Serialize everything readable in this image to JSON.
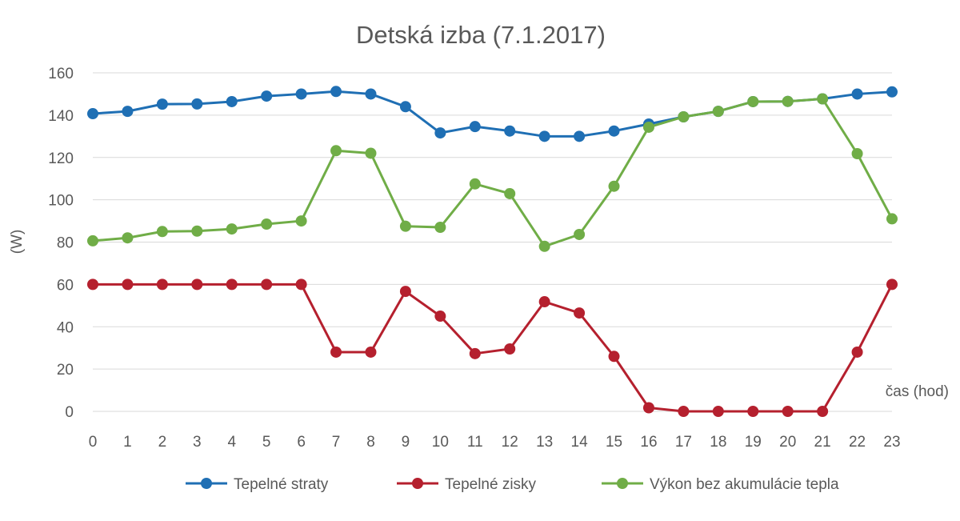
{
  "chart_data": {
    "type": "line",
    "title": "Detská izba (7.1.2017)",
    "xlabel": "čas (hod)",
    "ylabel": "(W)",
    "ylim": [
      0,
      160
    ],
    "yticks": [
      "0",
      "20",
      "40",
      "60",
      "80",
      "100",
      "120",
      "140",
      "160"
    ],
    "x": [
      "0",
      "1",
      "2",
      "3",
      "4",
      "5",
      "6",
      "7",
      "8",
      "9",
      "10",
      "11",
      "12",
      "13",
      "14",
      "15",
      "16",
      "17",
      "18",
      "19",
      "20",
      "21",
      "22",
      "23"
    ],
    "grid": "horizontal",
    "legend_position": "bottom",
    "series": [
      {
        "name": "Tepelné straty",
        "color": "#1F6FB4",
        "values": [
          140.7,
          141.8,
          145.2,
          145.3,
          146.4,
          149,
          150,
          151.2,
          150,
          144,
          131.6,
          134.6,
          132.5,
          130,
          130,
          132.5,
          135.8,
          139.2,
          141.8,
          146.4,
          146.5,
          147.7,
          150,
          151
        ]
      },
      {
        "name": "Tepelné zisky",
        "color": "#B5202E",
        "values": [
          60,
          60,
          60,
          60,
          60,
          60,
          60,
          28,
          28,
          56.7,
          45,
          27.3,
          29.5,
          51.8,
          46.5,
          26,
          1.7,
          0,
          0,
          0,
          0,
          0,
          28,
          60
        ]
      },
      {
        "name": "Výkon bez akumulácie tepla",
        "color": "#70AD47",
        "values": [
          80.6,
          82,
          85,
          85.2,
          86.2,
          88.5,
          90,
          123.2,
          122,
          87.5,
          87,
          107.5,
          102.9,
          78,
          83.6,
          106.4,
          134.3,
          139.2,
          141.8,
          146.4,
          146.5,
          147.7,
          121.8,
          91
        ]
      }
    ]
  }
}
